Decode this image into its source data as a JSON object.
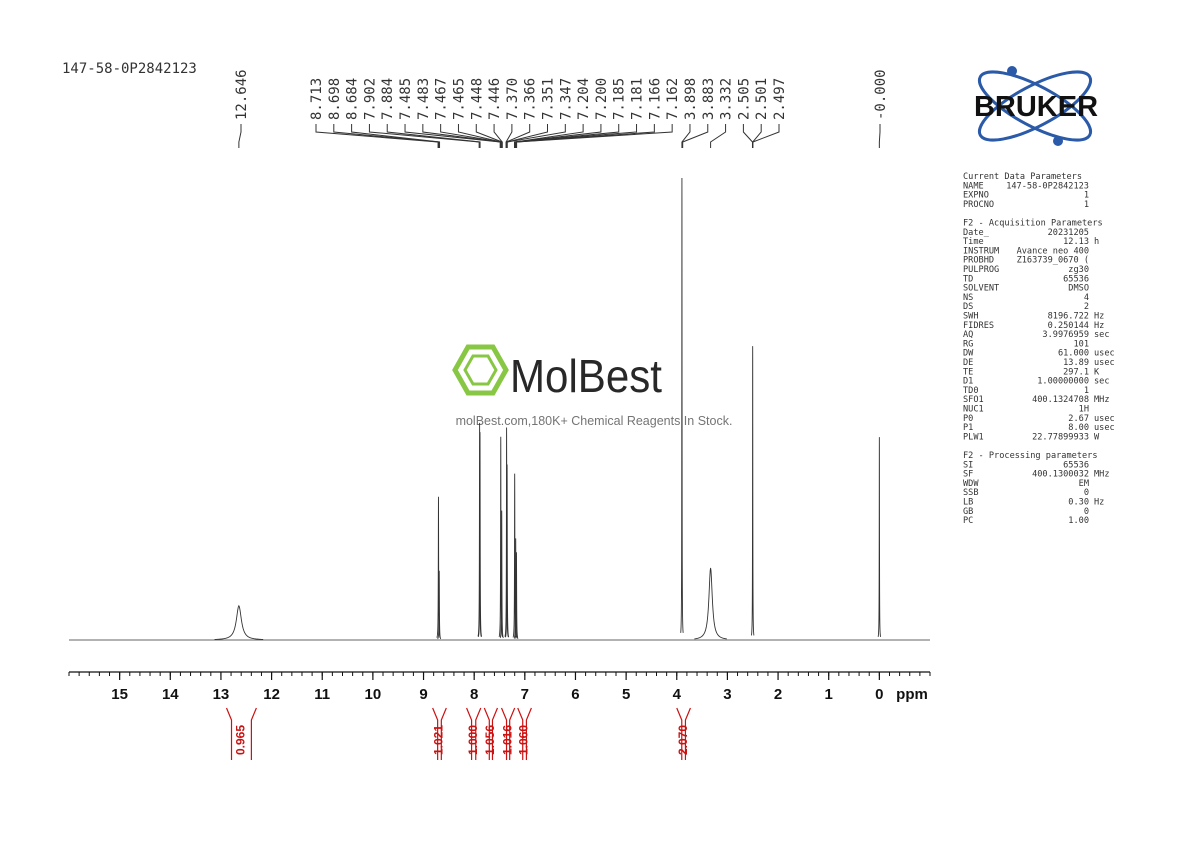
{
  "chart_data": {
    "type": "nmr",
    "title": "147-58-0P2842123",
    "x_label": "ppm",
    "xlim": [
      16,
      -1
    ],
    "xticks": [
      15,
      14,
      13,
      12,
      11,
      10,
      9,
      8,
      7,
      6,
      5,
      4,
      3,
      2,
      1,
      0
    ],
    "xminor": 0.2,
    "ylim": [
      0,
      100
    ],
    "line_color": "#333333",
    "integral_color": "#cc1111",
    "peaks": [
      {
        "ppm": 12.646,
        "height": 7.4,
        "width": 0.06
      },
      {
        "ppm": 8.705,
        "height": 31,
        "width": 0.004
      },
      {
        "ppm": 8.69,
        "height": 15,
        "width": 0.004
      },
      {
        "ppm": 7.893,
        "height": 47,
        "width": 0.004
      },
      {
        "ppm": 7.885,
        "height": 45,
        "width": 0.004
      },
      {
        "ppm": 7.475,
        "height": 44,
        "width": 0.004
      },
      {
        "ppm": 7.456,
        "height": 28,
        "width": 0.004
      },
      {
        "ppm": 7.36,
        "height": 46,
        "width": 0.004
      },
      {
        "ppm": 7.35,
        "height": 38,
        "width": 0.004
      },
      {
        "ppm": 7.2,
        "height": 36,
        "width": 0.004
      },
      {
        "ppm": 7.18,
        "height": 22,
        "width": 0.004
      },
      {
        "ppm": 7.165,
        "height": 19,
        "width": 0.004
      },
      {
        "ppm": 3.898,
        "height": 100,
        "width": 0.003
      },
      {
        "ppm": 3.332,
        "height": 15.6,
        "width": 0.04
      },
      {
        "ppm": 2.501,
        "height": 63.6,
        "width": 0.003
      },
      {
        "ppm": 0.0,
        "height": 43.9,
        "width": 0.003
      }
    ],
    "peak_labels": [
      [
        "12.646"
      ],
      [
        "8.713",
        "8.698",
        "8.684",
        "7.902",
        "7.884",
        "7.485",
        "7.483",
        "7.467",
        "7.465",
        "7.448",
        "7.446",
        "7.370",
        "7.366",
        "7.351",
        "7.347",
        "7.204",
        "7.200",
        "7.185",
        "7.181",
        "7.166",
        "7.162",
        "3.898",
        "3.883",
        "3.332",
        "2.505",
        "2.501",
        "2.497"
      ],
      [
        "-0.000"
      ]
    ],
    "integrals": [
      {
        "range": [
          12.89,
          12.3
        ],
        "label": "0.965"
      },
      {
        "range": [
          8.82,
          8.55
        ],
        "label": "1.021"
      },
      {
        "range": [
          8.15,
          7.87
        ],
        "label": "1.000"
      },
      {
        "range": [
          7.8,
          7.54
        ],
        "label": "1.056"
      },
      {
        "range": [
          7.46,
          7.2
        ],
        "label": "1.016"
      },
      {
        "range": [
          7.14,
          6.87
        ],
        "label": "1.060"
      },
      {
        "range": [
          4.0,
          3.73
        ],
        "label": "2.070"
      }
    ]
  },
  "logo": {
    "text": "BRUKER"
  },
  "watermark": {
    "name": "MolBest",
    "tagline": "molBest.com,180K+ Chemical Reagents In Stock."
  },
  "parameters": [
    {
      "title": "Current Data Parameters",
      "rows": [
        [
          "NAME",
          "147-58-0P2842123"
        ],
        [
          "EXPNO",
          "1"
        ],
        [
          "PROCNO",
          "1"
        ]
      ]
    },
    {
      "title": "F2 - Acquisition Parameters",
      "rows": [
        [
          "Date_",
          "20231205"
        ],
        [
          "Time",
          "12.13",
          "h"
        ],
        [
          "INSTRUM",
          "Avance neo 400"
        ],
        [
          "PROBHD",
          "Z163739_0670 ("
        ],
        [
          "PULPROG",
          "zg30"
        ],
        [
          "TD",
          "65536"
        ],
        [
          "SOLVENT",
          "DMSO"
        ],
        [
          "NS",
          "4"
        ],
        [
          "DS",
          "2"
        ],
        [
          "SWH",
          "8196.722",
          "Hz"
        ],
        [
          "FIDRES",
          "0.250144",
          "Hz"
        ],
        [
          "AQ",
          "3.9976959",
          "sec"
        ],
        [
          "RG",
          "101"
        ],
        [
          "DW",
          "61.000",
          "usec"
        ],
        [
          "DE",
          "13.89",
          "usec"
        ],
        [
          "TE",
          "297.1",
          "K"
        ],
        [
          "D1",
          "1.00000000",
          "sec"
        ],
        [
          "TD0",
          "1"
        ],
        [
          "SFO1",
          "400.1324708",
          "MHz"
        ],
        [
          "NUC1",
          "1H"
        ],
        [
          "P0",
          "2.67",
          "usec"
        ],
        [
          "P1",
          "8.00",
          "usec"
        ],
        [
          "PLW1",
          "22.77899933",
          "W"
        ]
      ]
    },
    {
      "title": "F2 - Processing parameters",
      "rows": [
        [
          "SI",
          "65536"
        ],
        [
          "SF",
          "400.1300032",
          "MHz"
        ],
        [
          "WDW",
          "EM"
        ],
        [
          "SSB",
          "0"
        ],
        [
          "LB",
          "0.30",
          "Hz"
        ],
        [
          "GB",
          "0"
        ],
        [
          "PC",
          "1.00"
        ]
      ]
    }
  ]
}
